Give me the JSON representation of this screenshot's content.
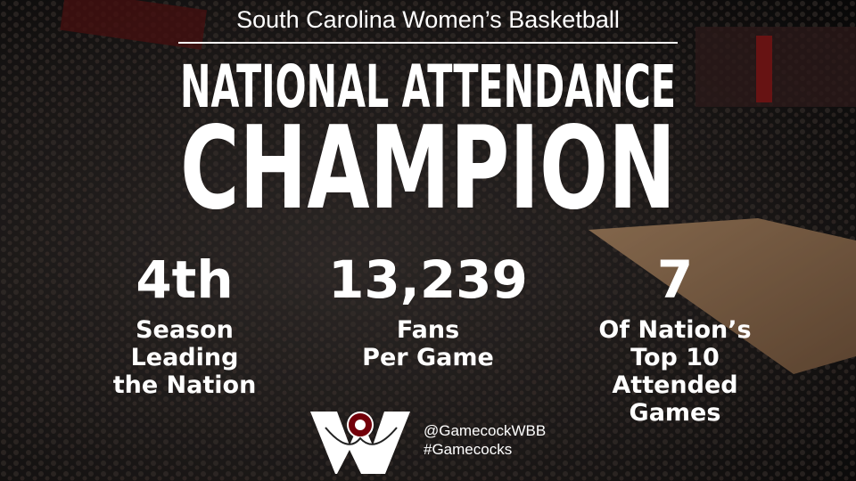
{
  "header": {
    "subtitle": "South Carolina Women’s Basketball",
    "title_lines": [
      "NATIONAL ATTENDANCE",
      "CHAMPION"
    ]
  },
  "stats": [
    {
      "value": "4th",
      "label_lines": [
        "Season",
        "Leading",
        "the Nation"
      ]
    },
    {
      "value": "13,239",
      "label_lines": [
        "Fans",
        "Per Game"
      ]
    },
    {
      "value": "7",
      "label_lines": [
        "Of Nation’s",
        "Top 10",
        "Attended",
        "Games"
      ]
    }
  ],
  "footer": {
    "handles": [
      "@GamecockWBB",
      "#Gamecocks"
    ]
  }
}
